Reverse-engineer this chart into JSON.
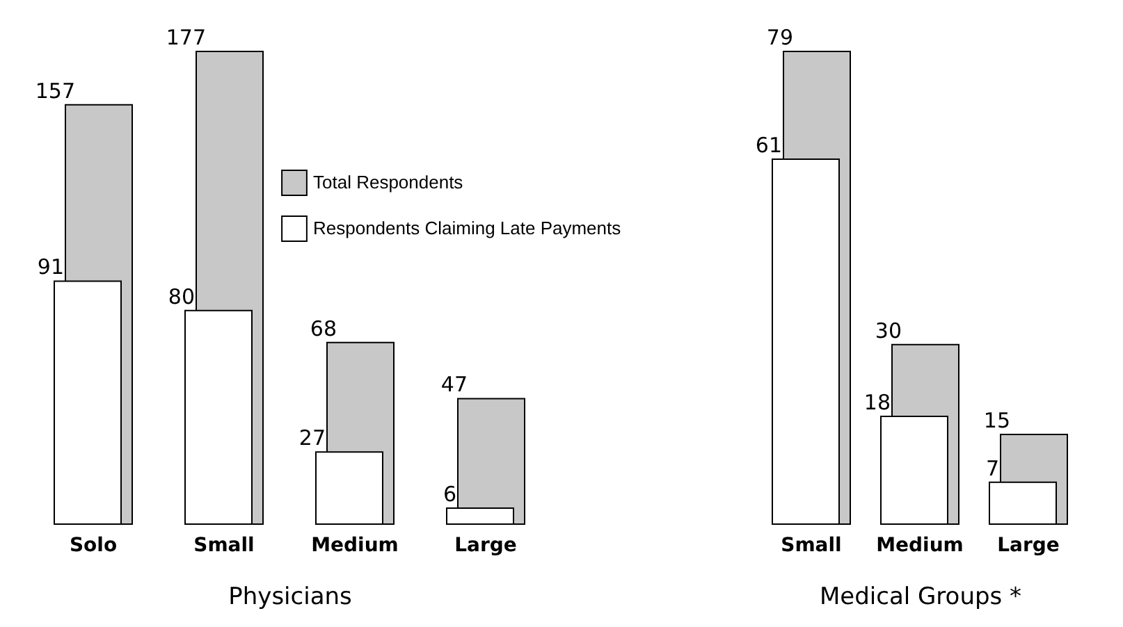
{
  "chart_data": [
    {
      "type": "bar",
      "xlabel": "Physicians",
      "categories": [
        "Solo",
        "Small",
        "Medium",
        "Large"
      ],
      "series": [
        {
          "name": "Respondents Claiming Late Payments",
          "color": "#ffffff",
          "values": [
            91,
            80,
            27,
            6
          ]
        },
        {
          "name": "Total Respondents",
          "color": "#c8c8c8",
          "values": [
            157,
            177,
            68,
            47
          ]
        }
      ],
      "data_labels": true,
      "legend": "top right"
    },
    {
      "type": "bar",
      "xlabel": "Medical Groups *",
      "categories": [
        "Small",
        "Medium",
        "Large"
      ],
      "series": [
        {
          "color": "#ffffff",
          "values": [
            61,
            18,
            7
          ]
        },
        {
          "color": "#c8c8c8",
          "values": [
            79,
            30,
            15
          ]
        }
      ],
      "data_labels": true
    }
  ]
}
